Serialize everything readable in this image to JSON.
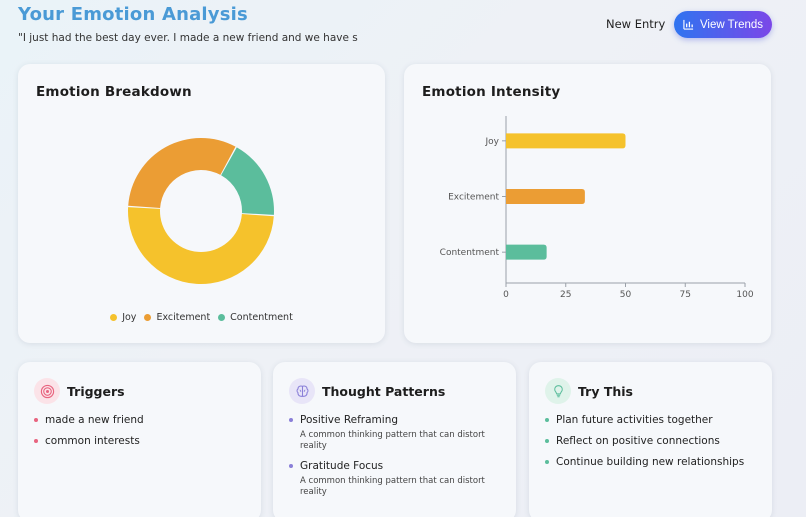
{
  "header": {
    "title": "Your Emotion Analysis",
    "entry_text": "\"I just had the best day ever. I made a new friend and we have so...",
    "new_entry_label": "New Entry",
    "view_trends_label": "View Trends"
  },
  "breakdown": {
    "title": "Emotion Breakdown"
  },
  "intensity": {
    "title": "Emotion Intensity"
  },
  "chart_data": [
    {
      "type": "pie",
      "donut": true,
      "title": "Emotion Breakdown",
      "categories": [
        "Joy",
        "Excitement",
        "Contentment"
      ],
      "values": [
        50,
        32,
        18
      ],
      "colors": [
        "#f5c22c",
        "#eb9d34",
        "#5bbd9c"
      ],
      "legend_position": "bottom"
    },
    {
      "type": "bar",
      "orientation": "horizontal",
      "title": "Emotion Intensity",
      "categories": [
        "Joy",
        "Excitement",
        "Contentment"
      ],
      "values": [
        50,
        33,
        17
      ],
      "colors": [
        "#f5c22c",
        "#eb9d34",
        "#5bbd9c"
      ],
      "xlim": [
        0,
        100
      ],
      "xticks": [
        0,
        25,
        50,
        75,
        100
      ],
      "grid": false
    }
  ],
  "triggers": {
    "title": "Triggers",
    "items": [
      "made a new friend",
      "common interests"
    ],
    "accent": "#e8647f"
  },
  "thought_patterns": {
    "title": "Thought Patterns",
    "items": [
      {
        "name": "Positive Reframing",
        "description": "A common thinking pattern that can distort reality"
      },
      {
        "name": "Gratitude Focus",
        "description": "A common thinking pattern that can distort reality"
      }
    ],
    "accent": "#8a7fd8"
  },
  "try_this": {
    "title": "Try This",
    "items": [
      "Plan future activities together",
      "Reflect on positive connections",
      "Continue building new relationships"
    ],
    "accent": "#5bbd9c"
  },
  "icons": {
    "view_trends": "bar-chart-icon",
    "triggers": "target-icon",
    "thought_patterns": "brain-icon",
    "try_this": "lightbulb-icon"
  }
}
